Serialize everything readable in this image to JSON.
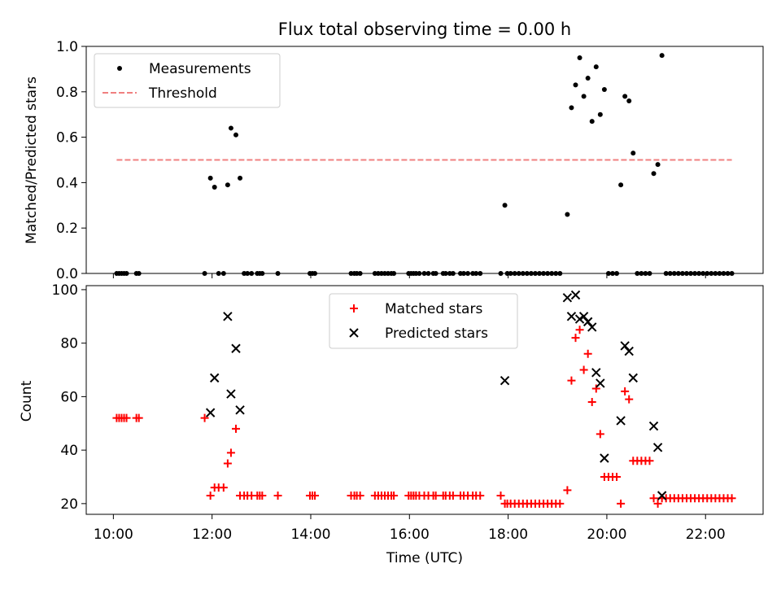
{
  "chart_data": [
    {
      "type": "scatter",
      "title": "Flux total observing time = 0.00 h",
      "xlabel": "",
      "ylabel": "Matched/Predicted stars",
      "xlim": [
        "09:27",
        "23:10"
      ],
      "ylim": [
        0,
        1.0
      ],
      "yticks": [
        0.0,
        0.2,
        0.4,
        0.6,
        0.8,
        1.0
      ],
      "yticklabels": [
        "0.0",
        "0.2",
        "0.4",
        "0.6",
        "0.8",
        "1.0"
      ],
      "grid": false,
      "legend_placement": "upper-left",
      "colors": {
        "measurements": "#000000",
        "threshold": "#f08080"
      },
      "series": [
        {
          "name": "Measurements",
          "marker": "dot",
          "points": [
            [
              "10:04",
              0.0
            ],
            [
              "10:07",
              0.0
            ],
            [
              "10:10",
              0.0
            ],
            [
              "10:13",
              0.0
            ],
            [
              "10:16",
              0.0
            ],
            [
              "10:28",
              0.0
            ],
            [
              "10:31",
              0.0
            ],
            [
              "11:51",
              0.0
            ],
            [
              "11:58",
              0.42
            ],
            [
              "12:03",
              0.38
            ],
            [
              "12:08",
              0.0
            ],
            [
              "12:14",
              0.0
            ],
            [
              "12:19",
              0.39
            ],
            [
              "12:23",
              0.64
            ],
            [
              "12:29",
              0.61
            ],
            [
              "12:34",
              0.42
            ],
            [
              "12:39",
              0.0
            ],
            [
              "12:43",
              0.0
            ],
            [
              "12:48",
              0.0
            ],
            [
              "12:55",
              0.0
            ],
            [
              "12:58",
              0.0
            ],
            [
              "13:01",
              0.0
            ],
            [
              "13:20",
              0.0
            ],
            [
              "13:59",
              0.0
            ],
            [
              "14:02",
              0.0
            ],
            [
              "14:05",
              0.0
            ],
            [
              "14:49",
              0.0
            ],
            [
              "14:53",
              0.0
            ],
            [
              "14:56",
              0.0
            ],
            [
              "15:00",
              0.0
            ],
            [
              "15:18",
              0.0
            ],
            [
              "15:22",
              0.0
            ],
            [
              "15:26",
              0.0
            ],
            [
              "15:30",
              0.0
            ],
            [
              "15:34",
              0.0
            ],
            [
              "15:38",
              0.0
            ],
            [
              "15:41",
              0.0
            ],
            [
              "15:59",
              0.0
            ],
            [
              "16:02",
              0.0
            ],
            [
              "16:05",
              0.0
            ],
            [
              "16:08",
              0.0
            ],
            [
              "16:12",
              0.0
            ],
            [
              "16:18",
              0.0
            ],
            [
              "16:23",
              0.0
            ],
            [
              "16:29",
              0.0
            ],
            [
              "16:32",
              0.0
            ],
            [
              "16:41",
              0.0
            ],
            [
              "16:44",
              0.0
            ],
            [
              "16:49",
              0.0
            ],
            [
              "16:53",
              0.0
            ],
            [
              "17:02",
              0.0
            ],
            [
              "17:06",
              0.0
            ],
            [
              "17:11",
              0.0
            ],
            [
              "17:17",
              0.0
            ],
            [
              "17:21",
              0.0
            ],
            [
              "17:26",
              0.0
            ],
            [
              "17:51",
              0.0
            ],
            [
              "17:56",
              0.3
            ],
            [
              "17:59",
              0.0
            ],
            [
              "18:03",
              0.0
            ],
            [
              "18:08",
              0.0
            ],
            [
              "18:13",
              0.0
            ],
            [
              "18:18",
              0.0
            ],
            [
              "18:23",
              0.0
            ],
            [
              "18:28",
              0.0
            ],
            [
              "18:33",
              0.0
            ],
            [
              "18:38",
              0.0
            ],
            [
              "18:43",
              0.0
            ],
            [
              "18:48",
              0.0
            ],
            [
              "18:53",
              0.0
            ],
            [
              "18:58",
              0.0
            ],
            [
              "19:03",
              0.0
            ],
            [
              "19:12",
              0.26
            ],
            [
              "19:17",
              0.73
            ],
            [
              "19:22",
              0.83
            ],
            [
              "19:27",
              0.95
            ],
            [
              "19:32",
              0.78
            ],
            [
              "19:37",
              0.86
            ],
            [
              "19:42",
              0.67
            ],
            [
              "19:47",
              0.91
            ],
            [
              "19:52",
              0.7
            ],
            [
              "19:57",
              0.81
            ],
            [
              "20:02",
              0.0
            ],
            [
              "20:07",
              0.0
            ],
            [
              "20:12",
              0.0
            ],
            [
              "20:17",
              0.39
            ],
            [
              "20:22",
              0.78
            ],
            [
              "20:27",
              0.76
            ],
            [
              "20:32",
              0.53
            ],
            [
              "20:37",
              0.0
            ],
            [
              "20:42",
              0.0
            ],
            [
              "20:47",
              0.0
            ],
            [
              "20:52",
              0.0
            ],
            [
              "20:57",
              0.44
            ],
            [
              "21:02",
              0.48
            ],
            [
              "21:07",
              0.96
            ],
            [
              "21:12",
              0.0
            ],
            [
              "21:17",
              0.0
            ],
            [
              "21:22",
              0.0
            ],
            [
              "21:27",
              0.0
            ],
            [
              "21:32",
              0.0
            ],
            [
              "21:37",
              0.0
            ],
            [
              "21:42",
              0.0
            ],
            [
              "21:47",
              0.0
            ],
            [
              "21:52",
              0.0
            ],
            [
              "21:57",
              0.0
            ],
            [
              "22:02",
              0.0
            ],
            [
              "22:07",
              0.0
            ],
            [
              "22:12",
              0.0
            ],
            [
              "22:17",
              0.0
            ],
            [
              "22:22",
              0.0
            ],
            [
              "22:27",
              0.0
            ],
            [
              "22:32",
              0.0
            ]
          ]
        },
        {
          "name": "Threshold",
          "marker": "dashed-line",
          "points": [
            [
              "10:04",
              0.5
            ],
            [
              "22:32",
              0.5
            ]
          ]
        }
      ]
    },
    {
      "type": "scatter",
      "title": "",
      "xlabel": "Time (UTC)",
      "ylabel": "Count",
      "xlim": [
        "09:27",
        "23:10"
      ],
      "ylim": [
        16,
        101.5
      ],
      "xticks": [
        "10:00",
        "12:00",
        "14:00",
        "16:00",
        "18:00",
        "20:00",
        "22:00"
      ],
      "yticks": [
        20,
        40,
        60,
        80,
        100
      ],
      "yticklabels": [
        "20",
        "40",
        "60",
        "80",
        "100"
      ],
      "grid": false,
      "legend_placement": "upper-center",
      "colors": {
        "matched": "#ff0000",
        "predicted": "#000000"
      },
      "series": [
        {
          "name": "Matched stars",
          "marker": "plus",
          "points": [
            [
              "10:04",
              52
            ],
            [
              "10:07",
              52
            ],
            [
              "10:10",
              52
            ],
            [
              "10:13",
              52
            ],
            [
              "10:16",
              52
            ],
            [
              "10:28",
              52
            ],
            [
              "10:31",
              52
            ],
            [
              "11:51",
              52
            ],
            [
              "11:58",
              23
            ],
            [
              "12:03",
              26
            ],
            [
              "12:08",
              26
            ],
            [
              "12:14",
              26
            ],
            [
              "12:19",
              35
            ],
            [
              "12:23",
              39
            ],
            [
              "12:29",
              48
            ],
            [
              "12:34",
              23
            ],
            [
              "12:39",
              23
            ],
            [
              "12:43",
              23
            ],
            [
              "12:48",
              23
            ],
            [
              "12:55",
              23
            ],
            [
              "12:58",
              23
            ],
            [
              "13:01",
              23
            ],
            [
              "13:20",
              23
            ],
            [
              "13:59",
              23
            ],
            [
              "14:02",
              23
            ],
            [
              "14:05",
              23
            ],
            [
              "14:49",
              23
            ],
            [
              "14:53",
              23
            ],
            [
              "14:56",
              23
            ],
            [
              "15:00",
              23
            ],
            [
              "15:18",
              23
            ],
            [
              "15:22",
              23
            ],
            [
              "15:26",
              23
            ],
            [
              "15:30",
              23
            ],
            [
              "15:34",
              23
            ],
            [
              "15:38",
              23
            ],
            [
              "15:41",
              23
            ],
            [
              "15:59",
              23
            ],
            [
              "16:02",
              23
            ],
            [
              "16:05",
              23
            ],
            [
              "16:08",
              23
            ],
            [
              "16:12",
              23
            ],
            [
              "16:18",
              23
            ],
            [
              "16:23",
              23
            ],
            [
              "16:29",
              23
            ],
            [
              "16:32",
              23
            ],
            [
              "16:41",
              23
            ],
            [
              "16:44",
              23
            ],
            [
              "16:49",
              23
            ],
            [
              "16:53",
              23
            ],
            [
              "17:02",
              23
            ],
            [
              "17:06",
              23
            ],
            [
              "17:11",
              23
            ],
            [
              "17:17",
              23
            ],
            [
              "17:21",
              23
            ],
            [
              "17:26",
              23
            ],
            [
              "17:51",
              23
            ],
            [
              "17:56",
              20
            ],
            [
              "17:59",
              20
            ],
            [
              "18:03",
              20
            ],
            [
              "18:08",
              20
            ],
            [
              "18:13",
              20
            ],
            [
              "18:18",
              20
            ],
            [
              "18:23",
              20
            ],
            [
              "18:28",
              20
            ],
            [
              "18:33",
              20
            ],
            [
              "18:38",
              20
            ],
            [
              "18:43",
              20
            ],
            [
              "18:48",
              20
            ],
            [
              "18:53",
              20
            ],
            [
              "18:58",
              20
            ],
            [
              "19:03",
              20
            ],
            [
              "19:12",
              25
            ],
            [
              "19:17",
              66
            ],
            [
              "19:22",
              82
            ],
            [
              "19:27",
              85
            ],
            [
              "19:32",
              70
            ],
            [
              "19:37",
              76
            ],
            [
              "19:42",
              58
            ],
            [
              "19:47",
              63
            ],
            [
              "19:52",
              46
            ],
            [
              "19:57",
              30
            ],
            [
              "20:02",
              30
            ],
            [
              "20:07",
              30
            ],
            [
              "20:12",
              30
            ],
            [
              "20:17",
              20
            ],
            [
              "20:22",
              62
            ],
            [
              "20:27",
              59
            ],
            [
              "20:32",
              36
            ],
            [
              "20:37",
              36
            ],
            [
              "20:42",
              36
            ],
            [
              "20:47",
              36
            ],
            [
              "20:52",
              36
            ],
            [
              "20:57",
              22
            ],
            [
              "21:02",
              20
            ],
            [
              "21:07",
              22
            ],
            [
              "21:12",
              22
            ],
            [
              "21:17",
              22
            ],
            [
              "21:22",
              22
            ],
            [
              "21:27",
              22
            ],
            [
              "21:32",
              22
            ],
            [
              "21:37",
              22
            ],
            [
              "21:42",
              22
            ],
            [
              "21:47",
              22
            ],
            [
              "21:52",
              22
            ],
            [
              "21:57",
              22
            ],
            [
              "22:02",
              22
            ],
            [
              "22:07",
              22
            ],
            [
              "22:12",
              22
            ],
            [
              "22:17",
              22
            ],
            [
              "22:22",
              22
            ],
            [
              "22:27",
              22
            ],
            [
              "22:32",
              22
            ]
          ]
        },
        {
          "name": "Predicted stars",
          "marker": "x",
          "points": [
            [
              "11:58",
              54
            ],
            [
              "12:03",
              67
            ],
            [
              "12:19",
              90
            ],
            [
              "12:23",
              61
            ],
            [
              "12:29",
              78
            ],
            [
              "12:34",
              55
            ],
            [
              "17:56",
              66
            ],
            [
              "19:12",
              97
            ],
            [
              "19:17",
              90
            ],
            [
              "19:22",
              98
            ],
            [
              "19:27",
              89
            ],
            [
              "19:32",
              90
            ],
            [
              "19:37",
              88
            ],
            [
              "19:42",
              86
            ],
            [
              "19:47",
              69
            ],
            [
              "19:52",
              65
            ],
            [
              "19:57",
              37
            ],
            [
              "20:17",
              51
            ],
            [
              "20:22",
              79
            ],
            [
              "20:27",
              77
            ],
            [
              "20:32",
              67
            ],
            [
              "20:57",
              49
            ],
            [
              "21:02",
              41
            ],
            [
              "21:07",
              23
            ]
          ]
        }
      ]
    }
  ]
}
